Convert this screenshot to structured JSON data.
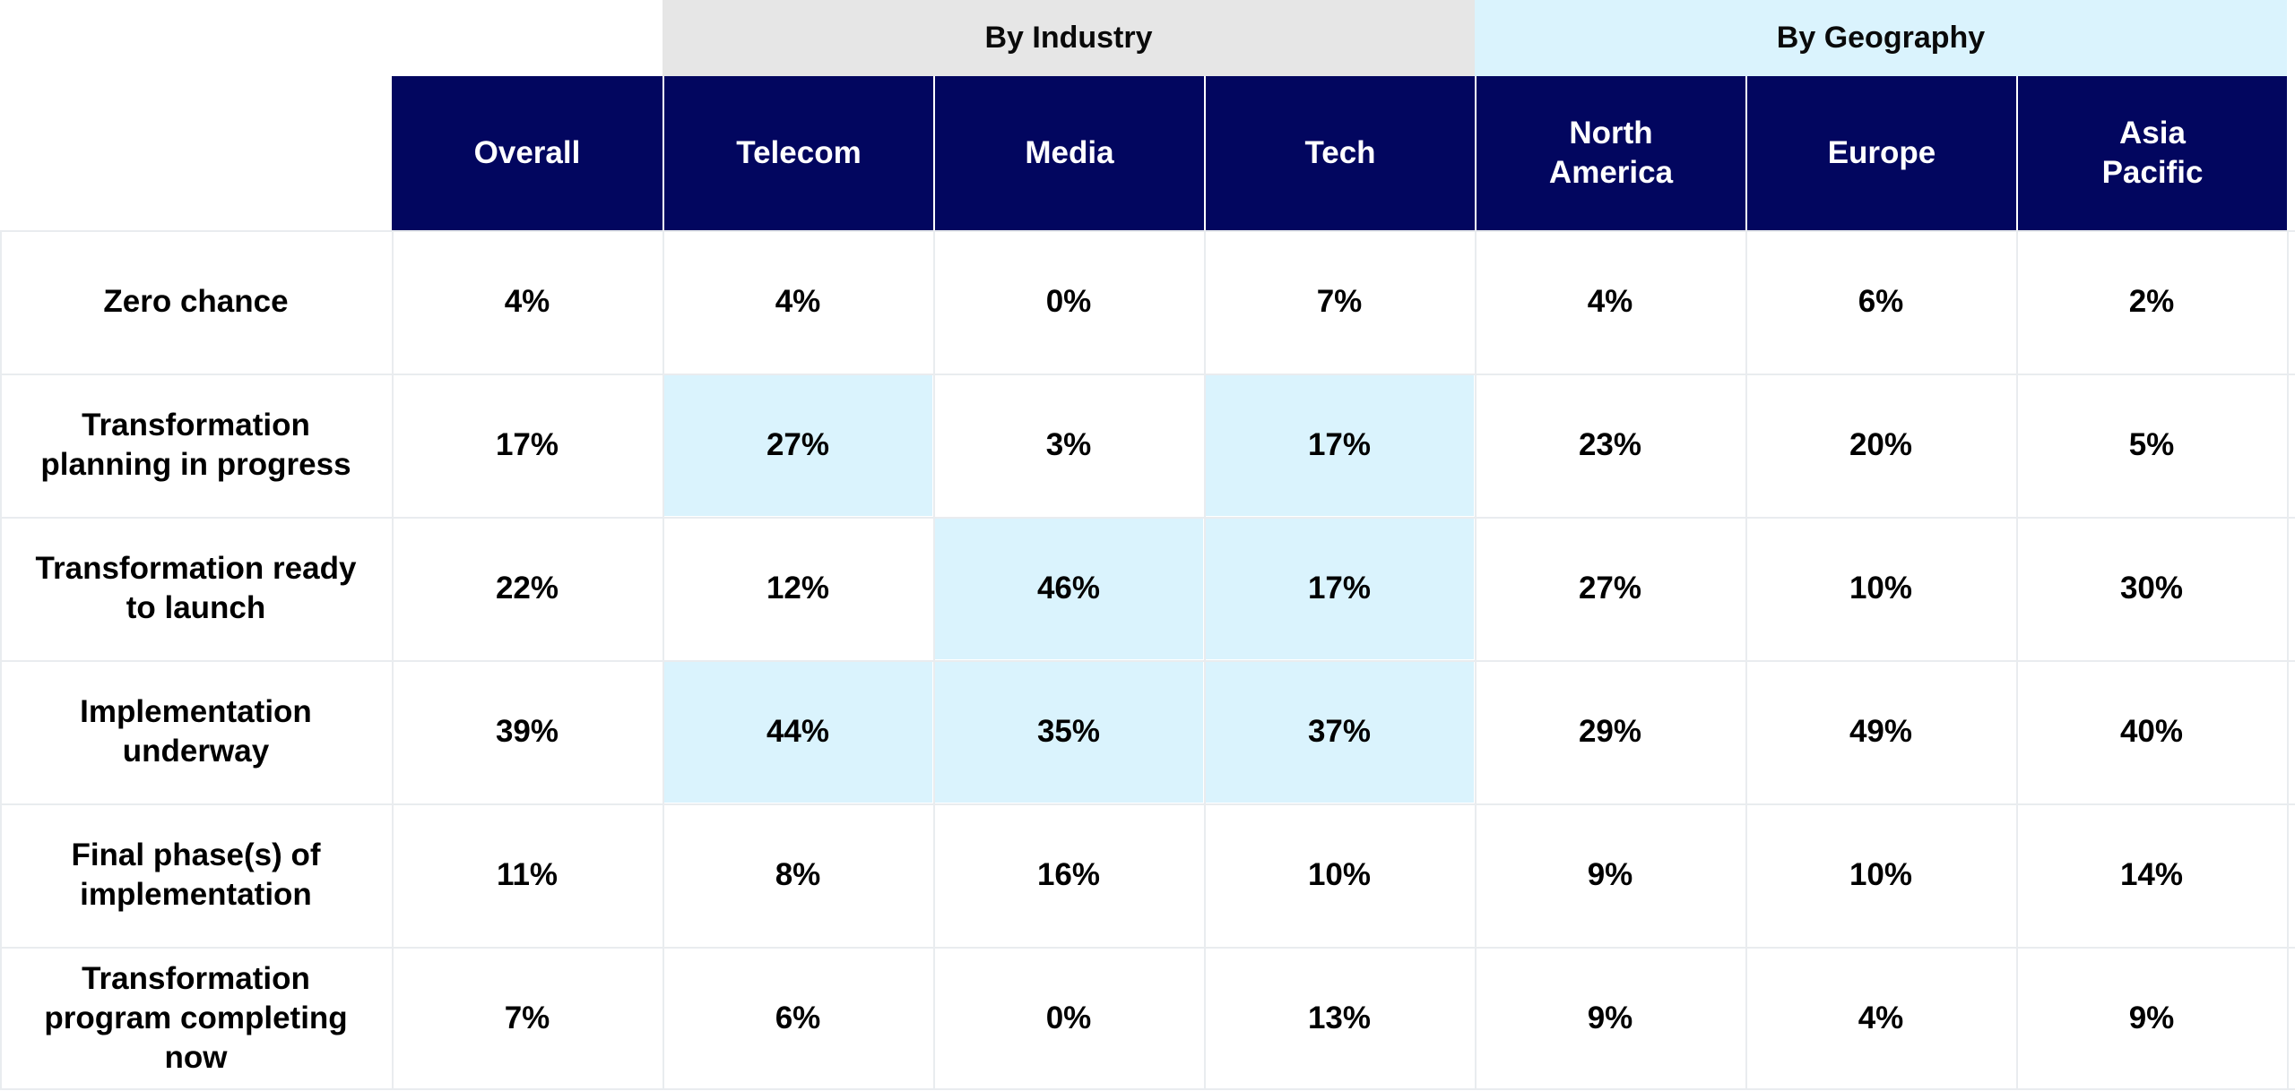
{
  "chart_data": {
    "type": "table",
    "column_groups": [
      {
        "label": "By Industry",
        "columns": [
          "Telecom",
          "Media",
          "Tech"
        ],
        "color": "#e6e6e6"
      },
      {
        "label": "By Geography",
        "columns": [
          "North\nAmerica",
          "Europe",
          "Asia\nPacific"
        ],
        "color": "#daf3fd"
      }
    ],
    "columns": [
      "Overall",
      "Telecom",
      "Media",
      "Tech",
      "North\nAmerica",
      "Europe",
      "Asia\nPacific"
    ],
    "rows": [
      {
        "label": "Zero chance",
        "values": [
          "4%",
          "4%",
          "0%",
          "7%",
          "4%",
          "6%",
          "2%"
        ],
        "highlight": []
      },
      {
        "label": "Transformation planning in progress",
        "values": [
          "17%",
          "27%",
          "3%",
          "17%",
          "23%",
          "20%",
          "5%"
        ],
        "highlight": [
          "Telecom",
          "Tech"
        ]
      },
      {
        "label": "Transformation ready to launch",
        "values": [
          "22%",
          "12%",
          "46%",
          "17%",
          "27%",
          "10%",
          "30%"
        ],
        "highlight": [
          "Media",
          "Tech"
        ]
      },
      {
        "label": "Implementation underway",
        "values": [
          "39%",
          "44%",
          "35%",
          "37%",
          "29%",
          "49%",
          "40%"
        ],
        "highlight": [
          "Telecom",
          "Media",
          "Tech"
        ]
      },
      {
        "label": "Final phase(s) of implementation",
        "values": [
          "11%",
          "8%",
          "16%",
          "10%",
          "9%",
          "10%",
          "14%"
        ],
        "highlight": []
      },
      {
        "label": "Transformation program completing now",
        "values": [
          "7%",
          "6%",
          "0%",
          "13%",
          "9%",
          "4%",
          "9%"
        ],
        "highlight": []
      }
    ],
    "colors": {
      "header": "#02065f",
      "highlight": "#daf3fd",
      "grid": "#e9ecef"
    }
  }
}
